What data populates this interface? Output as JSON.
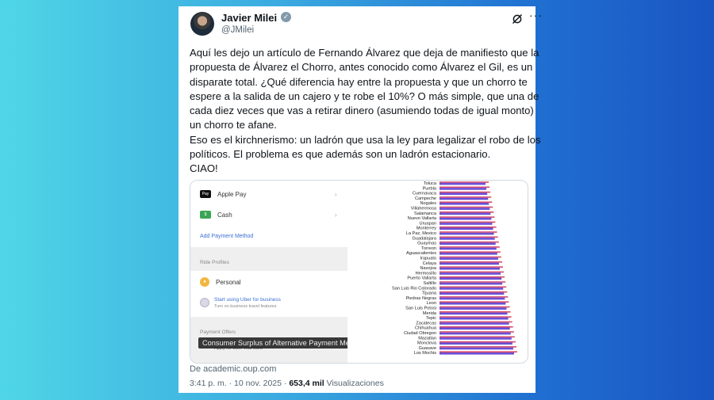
{
  "tweet": {
    "author_name": "Javier Milei",
    "handle": "@JMilei",
    "verified_glyph": "✓",
    "more_glyph": "···",
    "body_lines": [
      "Aquí les dejo un artículo de Fernando Álvarez que deja de manifiesto que la",
      "propuesta de Álvarez el Chorro, antes conocido como Álvarez el Gil, es un",
      "disparate total. ¿Qué diferencia hay entre la propuesta y que un chorro te",
      "espere a la salida de un cajero y te robe el 10%? O más simple, que una de",
      "cada diez veces que vas a retirar dinero (asumiendo todas de igual monto)",
      "un chorro te afane.",
      "Eso es el kirchnerismo: un ladrón que usa la ley para legalizar el robo de los",
      "políticos. El problema es que además son un ladrón estacionario.",
      "CIAO!"
    ],
    "source": "De academic.oup.com",
    "time": "3:41 p. m.",
    "separator": "·",
    "date": "10 nov. 2025",
    "views_count": "653,4 mil",
    "views_label": "Visualizaciones"
  },
  "media": {
    "payment_rows": [
      {
        "label": "Apple Pay",
        "chip": "Pay",
        "chip_color": "#111111"
      },
      {
        "label": "Cash",
        "chip": "$",
        "chip_color": "#3aa655"
      }
    ],
    "add_payment": "Add Payment Method",
    "ride_profiles_label": "Ride Profiles",
    "personal_label": "Personal",
    "business_title": "Start using Uber for business",
    "business_sub": "Turn on business travel features",
    "payment_offers_label": "Payment Offers",
    "visa_line": "Apply for Uber Visa Card",
    "caption": "Consumer Surplus of Alternative Payment Methods",
    "cities": [
      "Toluca",
      "Puebla",
      "Cuernavaca",
      "Campeche",
      "Nogales",
      "Villahermosa",
      "Salamanca",
      "Nuevo Vallarta",
      "Uruapan",
      "Monterrey",
      "La Paz, Mexico",
      "Guadalajara",
      "Guaymas",
      "Torreon",
      "Aguascalientes",
      "Irapuato",
      "Celaya",
      "Navojoa",
      "Hermosillo",
      "Puerto Vallarta",
      "Saltillo",
      "San Luis Rio Colorado",
      "Tijuana",
      "Piedras Negras",
      "Leon",
      "San Luis Potosi",
      "Merida",
      "Tepic",
      "Zacatecas",
      "Chihuahua",
      "Ciudad Obregon",
      "Mazatlan",
      "Monclova",
      "Guasave",
      "Los Mochis"
    ],
    "bar_colors": {
      "primary": "#6a4fd6",
      "secondary": "#d64a6a"
    }
  }
}
